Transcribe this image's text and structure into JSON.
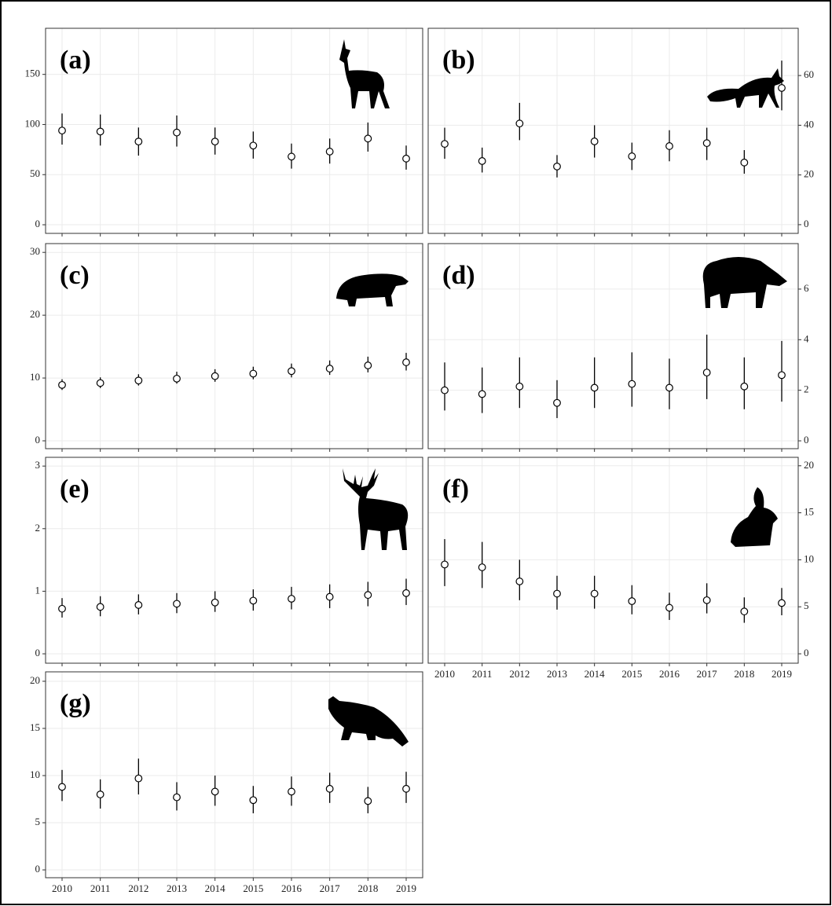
{
  "chart_data": [
    {
      "type": "pointrange",
      "title": "(a)",
      "categories": [
        "2010",
        "2011",
        "2012",
        "2013",
        "2014",
        "2015",
        "2016",
        "2017",
        "2018",
        "2019"
      ],
      "xtick_labels": false,
      "y_axis_side": "left",
      "values": [
        94,
        93,
        83,
        92,
        83,
        79,
        68,
        73,
        86,
        66
      ],
      "lower": [
        80,
        79,
        69,
        78,
        70,
        66,
        56,
        61,
        73,
        55
      ],
      "upper": [
        111,
        110,
        97,
        109,
        97,
        93,
        81,
        86,
        102,
        79
      ],
      "ylim": [
        -8.6,
        196
      ],
      "yticks": [
        0,
        50,
        100,
        150
      ],
      "grid": true
    },
    {
      "type": "pointrange",
      "title": "(b)",
      "categories": [
        "2010",
        "2011",
        "2012",
        "2013",
        "2014",
        "2015",
        "2016",
        "2017",
        "2018",
        "2019"
      ],
      "xtick_labels": false,
      "y_axis_side": "right",
      "values": [
        32.5,
        25.6,
        40.7,
        23.4,
        33.5,
        27.5,
        31.6,
        32.8,
        25,
        55
      ],
      "lower": [
        26.5,
        21,
        34,
        19,
        27,
        22,
        25.5,
        26,
        20.5,
        46
      ],
      "upper": [
        39,
        31,
        49,
        28,
        40,
        33,
        38,
        39,
        30,
        66
      ],
      "ylim": [
        -3.5,
        79
      ],
      "yticks": [
        0,
        20,
        40,
        60
      ],
      "grid": true
    },
    {
      "type": "pointrange",
      "title": "(c)",
      "categories": [
        "2010",
        "2011",
        "2012",
        "2013",
        "2014",
        "2015",
        "2016",
        "2017",
        "2018",
        "2019"
      ],
      "xtick_labels": false,
      "y_axis_side": "left",
      "values": [
        8.9,
        9.2,
        9.6,
        9.9,
        10.3,
        10.7,
        11.1,
        11.5,
        12,
        12.5
      ],
      "lower": [
        8.1,
        8.4,
        8.8,
        9.1,
        9.4,
        9.8,
        10.1,
        10.5,
        10.9,
        11.2
      ],
      "upper": [
        9.8,
        10.1,
        10.6,
        11,
        11.4,
        11.8,
        12.3,
        12.8,
        13.4,
        14
      ],
      "ylim": [
        -1.25,
        31.4
      ],
      "yticks": [
        0,
        10,
        20,
        30
      ],
      "grid": true
    },
    {
      "type": "pointrange",
      "title": "(d)",
      "categories": [
        "2010",
        "2011",
        "2012",
        "2013",
        "2014",
        "2015",
        "2016",
        "2017",
        "2018",
        "2019"
      ],
      "xtick_labels": false,
      "y_axis_side": "right",
      "values": [
        2.0,
        1.85,
        2.15,
        1.5,
        2.1,
        2.25,
        2.1,
        2.7,
        2.15,
        2.6
      ],
      "lower": [
        1.2,
        1.1,
        1.3,
        0.9,
        1.3,
        1.35,
        1.25,
        1.65,
        1.25,
        1.55
      ],
      "upper": [
        3.1,
        2.9,
        3.3,
        2.4,
        3.3,
        3.5,
        3.25,
        4.2,
        3.3,
        3.95
      ],
      "ylim": [
        -0.31,
        7.8
      ],
      "yticks": [
        0,
        2,
        4,
        6
      ],
      "grid": true
    },
    {
      "type": "pointrange",
      "title": "(e)",
      "categories": [
        "2010",
        "2011",
        "2012",
        "2013",
        "2014",
        "2015",
        "2016",
        "2017",
        "2018",
        "2019"
      ],
      "xtick_labels": false,
      "y_axis_side": "left",
      "values": [
        0.72,
        0.75,
        0.78,
        0.8,
        0.82,
        0.85,
        0.88,
        0.91,
        0.94,
        0.97
      ],
      "lower": [
        0.58,
        0.6,
        0.63,
        0.65,
        0.67,
        0.69,
        0.71,
        0.73,
        0.76,
        0.78
      ],
      "upper": [
        0.89,
        0.92,
        0.95,
        0.97,
        1.0,
        1.03,
        1.07,
        1.11,
        1.15,
        1.2
      ],
      "ylim": [
        -0.15,
        3.14
      ],
      "yticks": [
        0,
        1,
        2,
        3
      ],
      "grid": true
    },
    {
      "type": "pointrange",
      "title": "(f)",
      "categories": [
        "2010",
        "2011",
        "2012",
        "2013",
        "2014",
        "2015",
        "2016",
        "2017",
        "2018",
        "2019"
      ],
      "xtick_labels": true,
      "y_axis_side": "right",
      "values": [
        9.5,
        9.2,
        7.7,
        6.4,
        6.4,
        5.6,
        4.9,
        5.7,
        4.5,
        5.4
      ],
      "lower": [
        7.2,
        7.0,
        5.7,
        4.7,
        4.8,
        4.2,
        3.6,
        4.3,
        3.3,
        4.1
      ],
      "upper": [
        12.2,
        11.9,
        10,
        8.3,
        8.3,
        7.3,
        6.5,
        7.5,
        6.0,
        7.0
      ],
      "ylim": [
        -1.0,
        20.9
      ],
      "yticks": [
        0,
        5,
        10,
        15,
        20
      ],
      "grid": true
    },
    {
      "type": "pointrange",
      "title": "(g)",
      "categories": [
        "2010",
        "2011",
        "2012",
        "2013",
        "2014",
        "2015",
        "2016",
        "2017",
        "2018",
        "2019"
      ],
      "xtick_labels": true,
      "y_axis_side": "left",
      "values": [
        8.8,
        8.0,
        9.7,
        7.7,
        8.3,
        7.4,
        8.3,
        8.6,
        7.3,
        8.6
      ],
      "lower": [
        7.3,
        6.5,
        8.0,
        6.3,
        6.8,
        6.0,
        6.8,
        7.1,
        6.0,
        7.1
      ],
      "upper": [
        10.6,
        9.6,
        11.8,
        9.3,
        10.0,
        8.9,
        9.9,
        10.3,
        8.8,
        10.4
      ],
      "ylim": [
        -0.83,
        21
      ],
      "yticks": [
        0,
        5,
        10,
        15,
        20
      ],
      "grid": true
    }
  ]
}
